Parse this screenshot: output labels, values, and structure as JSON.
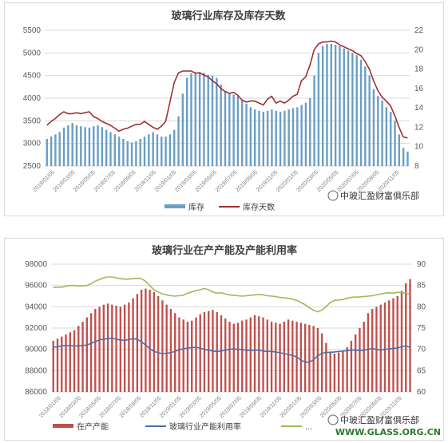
{
  "chart_data": [
    {
      "type": "bar",
      "title": "玻璃行业库存及库存天数",
      "ylim": [
        2500,
        5500
      ],
      "y2lim": [
        8,
        22
      ],
      "yticks": [
        2500,
        3000,
        3500,
        4000,
        4500,
        5000,
        5500
      ],
      "y2ticks": [
        8,
        10,
        12,
        14,
        16,
        18,
        20,
        22
      ],
      "x_tick_labels": [
        "2018/01/05",
        "2018/03/05",
        "2018/05/05",
        "2018/07/05",
        "2018/09/05",
        "2018/11/05",
        "2019/01/05",
        "2019/03/05",
        "2019/05/05",
        "2019/07/05",
        "2019/09/05",
        "2019/11/05",
        "2020/01/05",
        "2020/03/05",
        "2020/05/05",
        "2020/07/05",
        "2020/09/05",
        "2020/11/05"
      ],
      "grid": true,
      "legend": "bottom",
      "series": [
        {
          "name": "库存",
          "kind": "bar",
          "color": "#6a9ec4",
          "axis": "left",
          "values": [
            3100,
            3150,
            3200,
            3250,
            3350,
            3400,
            3450,
            3400,
            3380,
            3360,
            3350,
            3380,
            3400,
            3360,
            3300,
            3250,
            3200,
            3150,
            3100,
            3050,
            3020,
            3050,
            3100,
            3150,
            3200,
            3250,
            3200,
            3150,
            3150,
            3200,
            3300,
            3600,
            4100,
            4450,
            4550,
            4550,
            4580,
            4560,
            4520,
            4500,
            4450,
            4300,
            4150,
            4100,
            4080,
            4050,
            3950,
            3880,
            3800,
            3750,
            3720,
            3700,
            3720,
            3750,
            3720,
            3700,
            3720,
            3750,
            3780,
            3800,
            3850,
            3900,
            4000,
            4500,
            5000,
            5150,
            5200,
            5200,
            5180,
            5150,
            5100,
            5050,
            5000,
            4950,
            4850,
            4700,
            4500,
            4200,
            4050,
            3950,
            3800,
            3700,
            3500,
            3200,
            2900,
            2820
          ]
        },
        {
          "name": "库存天数",
          "kind": "line",
          "color": "#a03033",
          "axis": "right",
          "values": [
            12.2,
            12.6,
            12.9,
            13.3,
            13.6,
            13.4,
            13.4,
            13.5,
            13.4,
            13.5,
            13.6,
            13.1,
            12.9,
            12.6,
            12.4,
            12.2,
            11.9,
            11.6,
            11.8,
            11.9,
            12.1,
            12.3,
            12.3,
            12.6,
            12.3,
            12.0,
            11.8,
            12.1,
            12.6,
            14.6,
            16.6,
            17.6,
            17.8,
            17.8,
            17.8,
            17.6,
            17.6,
            17.4,
            17.2,
            16.8,
            16.5,
            16.0,
            15.7,
            15.5,
            15.6,
            15.3,
            14.8,
            14.6,
            14.7,
            14.7,
            14.5,
            14.3,
            14.9,
            15.2,
            14.5,
            14.7,
            14.5,
            14.8,
            15.2,
            15.4,
            16.8,
            17.2,
            18.4,
            20.0,
            20.6,
            20.8,
            20.8,
            20.9,
            20.8,
            20.5,
            20.3,
            20.1,
            19.9,
            19.6,
            19.4,
            18.8,
            18.0,
            16.8,
            15.8,
            15.1,
            14.7,
            14.2,
            13.2,
            12.0,
            11.0,
            10.9
          ]
        }
      ]
    },
    {
      "type": "bar",
      "title": "玻璃行业在产产能及产能利用率",
      "ylim": [
        86000,
        98000
      ],
      "y2lim": [
        60,
        90
      ],
      "yticks": [
        86000,
        88000,
        90000,
        92000,
        94000,
        96000,
        98000
      ],
      "y2ticks": [
        60,
        65,
        70,
        75,
        80,
        85,
        90
      ],
      "x_tick_labels": [
        "2018/01/05",
        "2018/03/05",
        "2018/05/05",
        "2018/07/05",
        "2018/09/05",
        "2018/11/05",
        "2019/01/05",
        "2019/03/05",
        "2019/05/05",
        "2019/07/05",
        "2019/09/05",
        "2019/11/05",
        "2020/01/05",
        "2020/03/05",
        "2020/05/05",
        "2020/07/05",
        "2020/09/05",
        "2020/11/05"
      ],
      "grid": true,
      "legend": "bottom",
      "series": [
        {
          "name": "在产产能",
          "kind": "bar",
          "color": "#c0504d",
          "axis": "left",
          "values": [
            90800,
            91000,
            91200,
            91400,
            91600,
            91800,
            92200,
            92600,
            93000,
            93400,
            93800,
            94000,
            94200,
            94300,
            94200,
            94100,
            94000,
            94200,
            94400,
            94800,
            95200,
            95600,
            95700,
            95600,
            95400,
            95000,
            94600,
            94200,
            93800,
            93400,
            93000,
            92800,
            92600,
            92700,
            93000,
            93300,
            93500,
            93600,
            93700,
            93500,
            93200,
            92900,
            92600,
            92400,
            92500,
            92700,
            92800,
            93000,
            93200,
            93100,
            93000,
            92800,
            92600,
            92500,
            92400,
            92600,
            92800,
            92700,
            92600,
            92500,
            92400,
            92300,
            92200,
            92000,
            91500,
            90600,
            89800,
            89600,
            89700,
            89800,
            90200,
            90800,
            91400,
            92000,
            92600,
            93400,
            93800,
            94000,
            94200,
            94400,
            94600,
            94800,
            95000,
            95500,
            96200,
            96600
          ]
        },
        {
          "name": "玻璃行业产能利用率",
          "kind": "line",
          "color": "#4a6da7",
          "axis": "right",
          "values": [
            70.5,
            70.6,
            70.8,
            70.9,
            70.9,
            70.8,
            70.8,
            70.9,
            71.0,
            71.4,
            71.8,
            72.2,
            72.4,
            72.5,
            72.6,
            72.4,
            72.2,
            72.1,
            72.3,
            72.5,
            72.4,
            71.8,
            71.0,
            70.2,
            69.5,
            69.2,
            69.0,
            69.1,
            69.2,
            69.5,
            69.9,
            70.1,
            70.3,
            70.4,
            70.5,
            70.3,
            70.0,
            69.8,
            69.6,
            69.5,
            69.6,
            69.8,
            70.0,
            70.1,
            70.0,
            69.9,
            69.8,
            69.7,
            69.8,
            69.8,
            69.6,
            69.5,
            69.5,
            69.4,
            69.2,
            69.0,
            68.8,
            68.6,
            68.2,
            67.5,
            67.0,
            67.0,
            67.5,
            68.5,
            69.0,
            69.3,
            69.3,
            69.4,
            69.5,
            69.6,
            69.7,
            69.8,
            69.8,
            69.7,
            69.8,
            70.0,
            70.2,
            70.0,
            69.8,
            70.0,
            70.1,
            70.2,
            70.3,
            70.6,
            70.8,
            70.5
          ]
        },
        {
          "color": "#9bbb59",
          "axis": "right",
          "values": [
            84.5,
            84.6,
            84.6,
            84.8,
            85.0,
            85.0,
            84.9,
            84.9,
            85.0,
            85.4,
            86.0,
            86.4,
            86.8,
            87.0,
            87.0,
            86.8,
            86.6,
            86.5,
            86.5,
            86.6,
            86.7,
            86.6,
            86.0,
            85.0,
            84.0,
            83.5,
            83.0,
            82.8,
            82.6,
            82.5,
            82.6,
            82.7,
            83.2,
            83.5,
            83.8,
            84.0,
            84.3,
            84.0,
            83.5,
            83.2,
            83.3,
            83.0,
            82.8,
            82.7,
            82.6,
            82.5,
            82.6,
            82.7,
            82.8,
            82.9,
            82.8,
            82.6,
            82.5,
            82.4,
            82.2,
            82.1,
            82.0,
            81.8,
            81.5,
            81.0,
            80.5,
            79.8,
            79.2,
            78.8,
            79.2,
            80.0,
            81.0,
            81.5,
            81.6,
            81.7,
            82.0,
            82.2,
            82.3,
            82.3,
            82.4,
            82.5,
            82.6,
            82.8,
            83.0,
            83.2,
            83.3,
            83.2,
            83.4,
            83.3,
            83.2,
            83.0
          ]
        }
      ],
      "legend_labels": [
        "在产产能",
        "玻璃行业产能利用率",
        "..."
      ]
    }
  ],
  "watermark": {
    "text1": "中玻汇盈财富俱乐部",
    "text2": "中玻汇盈财富俱乐部",
    "url": "WWW.GLASS.ORG.CN"
  }
}
